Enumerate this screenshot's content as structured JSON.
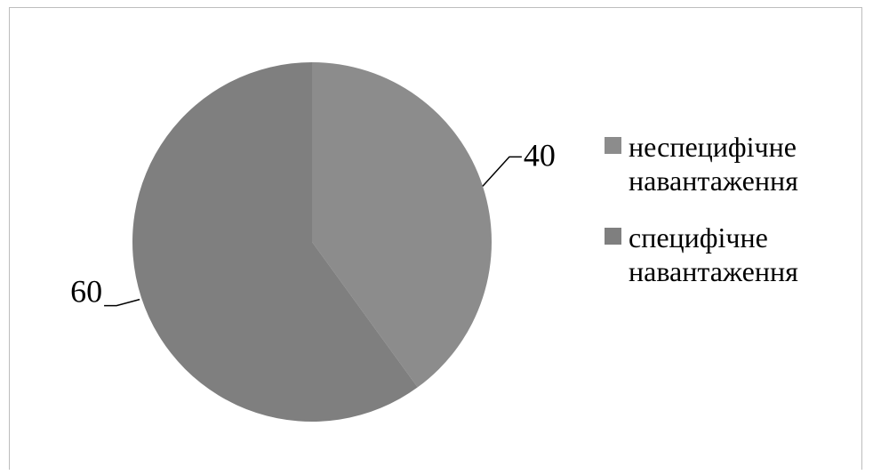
{
  "chart_data": {
    "type": "pie",
    "series": [
      {
        "values": [
          40,
          60
        ]
      }
    ],
    "categories": [
      "неспецифічне навантаження",
      "специфічне навантаження"
    ],
    "data_labels": [
      "40",
      "60"
    ],
    "colors": [
      "#8c8c8c",
      "#7f7f7f"
    ],
    "start_angle_deg": 0,
    "direction": "clockwise",
    "legend_position": "right"
  },
  "legend": {
    "items": [
      {
        "label": "неспецифічне навантаження",
        "color": "#8c8c8c"
      },
      {
        "label": "специфічне навантаження",
        "color": "#7f7f7f"
      }
    ]
  }
}
